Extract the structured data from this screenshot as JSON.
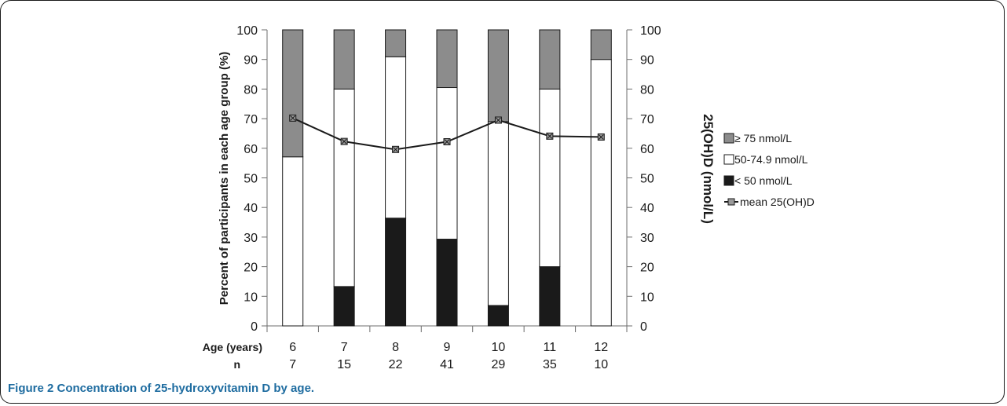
{
  "caption": "Figure 2 Concentration of 25-hydroxyvitamin D by age.",
  "chart_data": {
    "type": "bar",
    "stacked": true,
    "ylabel": "Percent of participants in each age group (%)",
    "y2label": "25(OH)D (nmol/L)",
    "ylim": [
      0,
      100
    ],
    "y2lim": [
      0,
      100
    ],
    "yticks": [
      0,
      10,
      20,
      30,
      40,
      50,
      60,
      70,
      80,
      90,
      100
    ],
    "categories": [
      "6",
      "7",
      "8",
      "9",
      "10",
      "11",
      "12"
    ],
    "row_labels": {
      "age": "Age (years)",
      "n": "n"
    },
    "n": [
      "7",
      "15",
      "22",
      "41",
      "29",
      "35",
      "10"
    ],
    "series": [
      {
        "name": "< 50 nmol/L",
        "color": "#1a1a1a",
        "values": [
          0,
          13.3,
          36.4,
          29.3,
          6.9,
          20.0,
          0
        ]
      },
      {
        "name": "50-74.9 nmol/L",
        "color": "#ffffff",
        "values": [
          57.1,
          66.7,
          54.5,
          51.2,
          62.1,
          60.0,
          90.0
        ]
      },
      {
        "name": "≥ 75 nmol/L",
        "color": "#8c8c8c",
        "values": [
          42.9,
          20.0,
          9.1,
          19.5,
          31.0,
          20.0,
          10.0
        ]
      }
    ],
    "line": {
      "name": "mean 25(OH)D",
      "axis": "right",
      "values": [
        70.2,
        62.3,
        59.6,
        62.2,
        69.5,
        64.1,
        63.8
      ]
    },
    "legend": [
      "≥ 75 nmol/L",
      "50-74.9 nmol/L",
      "< 50 nmol/L",
      "mean 25(OH)D"
    ],
    "legend_position": "right"
  }
}
